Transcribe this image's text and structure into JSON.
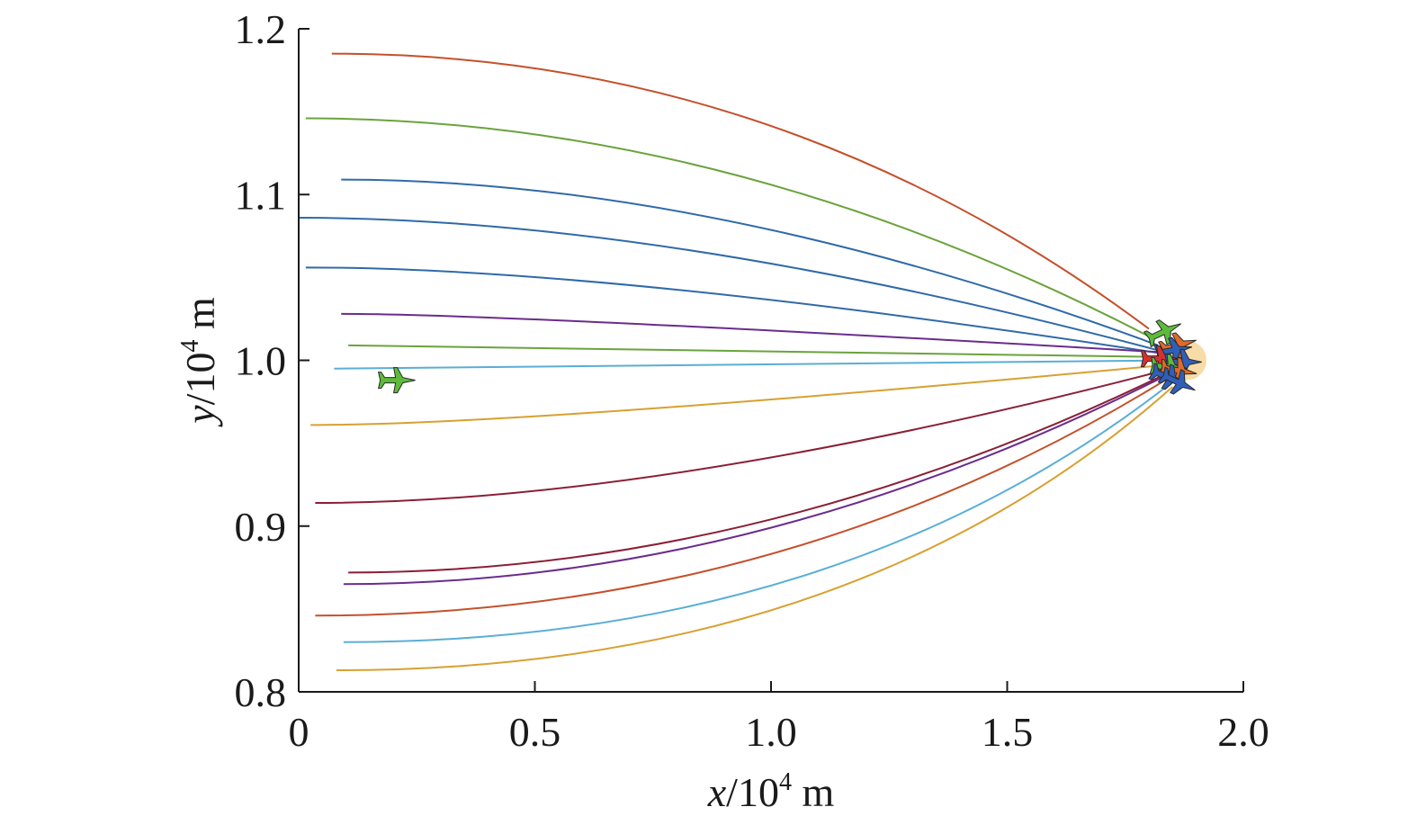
{
  "chart_data": {
    "type": "line",
    "title": "",
    "xlabel": {
      "var": "x",
      "text": "/10",
      "exp": "4",
      "unit": " m"
    },
    "ylabel": {
      "var": "y",
      "text": "/10",
      "exp": "4",
      "unit": " m"
    },
    "xlim": [
      0,
      2.0
    ],
    "ylim": [
      0.8,
      1.2
    ],
    "x_ticks": [
      {
        "value": 0,
        "label": "0"
      },
      {
        "value": 0.5,
        "label": "0.5"
      },
      {
        "value": 1.0,
        "label": "1.0"
      },
      {
        "value": 1.5,
        "label": "1.5"
      },
      {
        "value": 2.0,
        "label": "2.0"
      }
    ],
    "y_ticks": [
      {
        "value": 0.8,
        "label": "0.8"
      },
      {
        "value": 0.9,
        "label": "0.9"
      },
      {
        "value": 1.0,
        "label": "1.0"
      },
      {
        "value": 1.1,
        "label": "1.1"
      },
      {
        "value": 1.2,
        "label": "1.2"
      }
    ],
    "grid": false,
    "legend": "none",
    "target_point": {
      "x": 1.88,
      "y": 1.0
    },
    "series": [
      {
        "color": "#c4502a",
        "start": [
          0.07,
          1.185
        ],
        "end": [
          1.8,
          1.019
        ],
        "curv": 0.55
      },
      {
        "color": "#6aa33c",
        "start": [
          0.015,
          1.146
        ],
        "end": [
          1.81,
          1.013
        ],
        "curv": 0.5
      },
      {
        "color": "#2f6aa8",
        "start": [
          0.09,
          1.109
        ],
        "end": [
          1.82,
          1.009
        ],
        "curv": 0.45
      },
      {
        "color": "#2f6aa8",
        "start": [
          0.0,
          1.086
        ],
        "end": [
          1.82,
          1.006
        ],
        "curv": 0.42
      },
      {
        "color": "#2f6aa8",
        "start": [
          0.015,
          1.056
        ],
        "end": [
          1.83,
          1.004
        ],
        "curv": 0.35
      },
      {
        "color": "#6a2c8c",
        "start": [
          0.09,
          1.028
        ],
        "end": [
          1.82,
          1.005
        ],
        "curv": 0.2
      },
      {
        "color": "#6aa33c",
        "start": [
          0.105,
          1.009
        ],
        "end": [
          1.83,
          1.002
        ],
        "curv": 0.05
      },
      {
        "color": "#5aaed6",
        "start": [
          0.075,
          0.995
        ],
        "end": [
          1.86,
          1.0
        ],
        "curv": 0.0
      },
      {
        "color": "#d8a030",
        "start": [
          0.025,
          0.961
        ],
        "end": [
          1.83,
          0.997
        ],
        "curv": 0.25
      },
      {
        "color": "#8a1f35",
        "start": [
          0.035,
          0.914
        ],
        "end": [
          1.82,
          0.993
        ],
        "curv": 0.4
      },
      {
        "color": "#8a1f35",
        "start": [
          0.105,
          0.872
        ],
        "end": [
          1.83,
          0.991
        ],
        "curv": 0.5
      },
      {
        "color": "#6a2c8c",
        "start": [
          0.095,
          0.865
        ],
        "end": [
          1.83,
          0.99
        ],
        "curv": 0.5
      },
      {
        "color": "#c4502a",
        "start": [
          0.035,
          0.846
        ],
        "end": [
          1.84,
          0.989
        ],
        "curv": 0.55
      },
      {
        "color": "#5aaed6",
        "start": [
          0.095,
          0.83
        ],
        "end": [
          1.85,
          0.987
        ],
        "curv": 0.6
      },
      {
        "color": "#d8a030",
        "start": [
          0.08,
          0.813
        ],
        "end": [
          1.85,
          0.984
        ],
        "curv": 0.62
      }
    ],
    "aircraft": [
      {
        "color": "#5dbb3a",
        "x": 0.205,
        "y": 0.988,
        "angle": 0
      },
      {
        "color": "#5dbb3a",
        "x": 1.83,
        "y": 1.017,
        "angle": -25
      },
      {
        "color": "#e06a28",
        "x": 1.86,
        "y": 1.009,
        "angle": -15
      },
      {
        "color": "#2f5fb8",
        "x": 1.85,
        "y": 1.006,
        "angle": -10
      },
      {
        "color": "#d83030",
        "x": 1.82,
        "y": 1.001,
        "angle": 0
      },
      {
        "color": "#2f5fb8",
        "x": 1.87,
        "y": 0.999,
        "angle": 0
      },
      {
        "color": "#5dbb3a",
        "x": 1.84,
        "y": 0.996,
        "angle": 5
      },
      {
        "color": "#e06a28",
        "x": 1.86,
        "y": 0.994,
        "angle": 10
      },
      {
        "color": "#2f5fb8",
        "x": 1.84,
        "y": 0.99,
        "angle": 20
      },
      {
        "color": "#2f5fb8",
        "x": 1.86,
        "y": 0.987,
        "angle": 25
      }
    ]
  }
}
